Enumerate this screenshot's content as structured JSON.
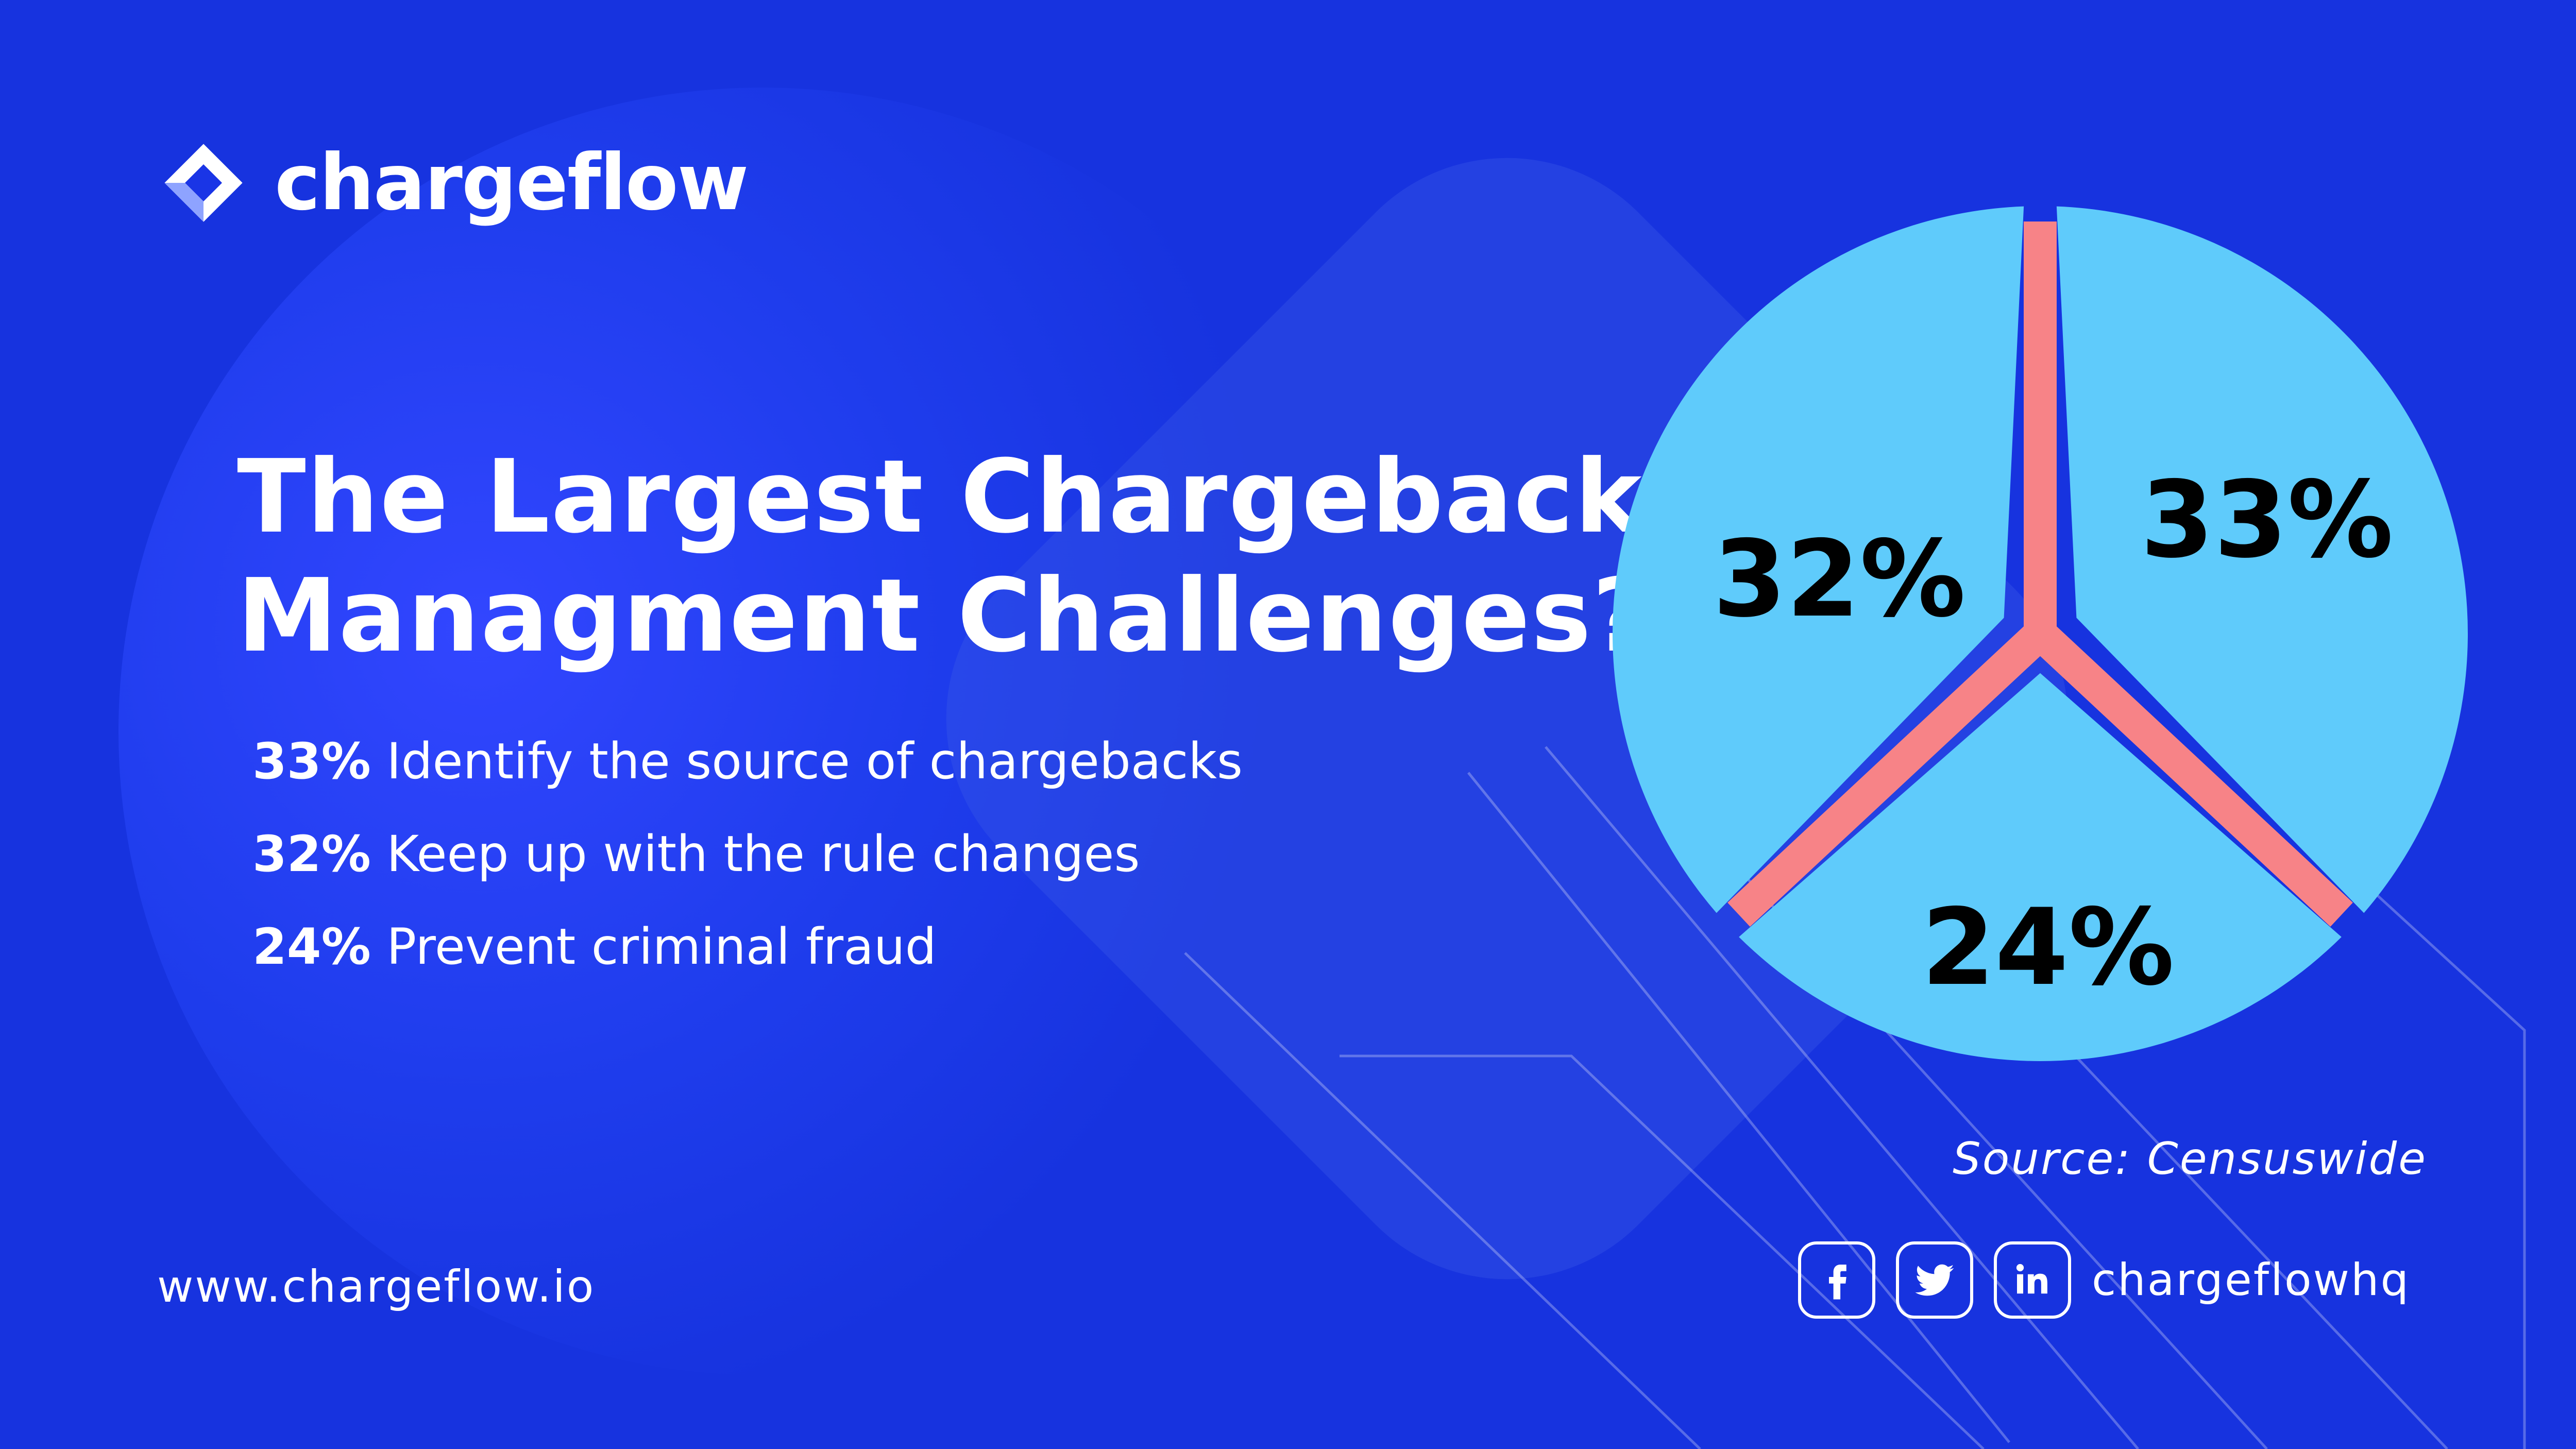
{
  "brand": {
    "name": "chargeflow",
    "website": "www.chargeflow.io",
    "handle": "chargeflowhq",
    "source": "Source: Censuswide"
  },
  "title_lines": [
    "The Largest Chargeback",
    "Managment Challenges?"
  ],
  "stats": [
    {
      "pct": "33%",
      "text": "Identify the source of chargebacks"
    },
    {
      "pct": "32%",
      "text": "Keep up with the rule changes"
    },
    {
      "pct": "24%",
      "text": "Prevent criminal fraud"
    }
  ],
  "social": [
    {
      "icon": "facebook-icon"
    },
    {
      "icon": "twitter-icon"
    },
    {
      "icon": "linkedin-icon"
    }
  ],
  "colors": {
    "background": "#1a35e6",
    "slice": "#5fcbfb",
    "divider": "#f78387",
    "label": "#000000"
  },
  "chart_data": {
    "type": "pie",
    "categories": [
      "Identify the source of chargebacks",
      "Keep up with the rule changes",
      "Prevent criminal fraud"
    ],
    "values": [
      33,
      32,
      24
    ],
    "labels": [
      "33%",
      "32%",
      "24%"
    ],
    "title": "The Largest Chargeback Managment Challenges?",
    "legend": "none"
  }
}
